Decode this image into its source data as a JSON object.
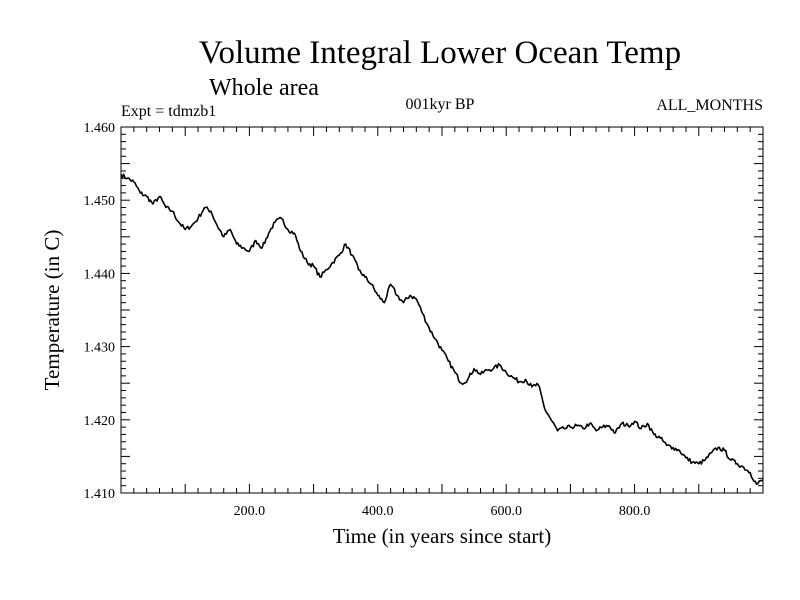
{
  "chart_data": {
    "type": "line",
    "title": "Volume Integral Lower Ocean Temp",
    "subtitle": "Whole area",
    "left_label": "Expt = tdmzb1",
    "center_label": "001kyr BP",
    "right_label": "ALL_MONTHS",
    "xlabel": "Time (in years since start)",
    "ylabel": "Temperature (in C)",
    "xlim": [
      0,
      1000
    ],
    "ylim": [
      1.41,
      1.46
    ],
    "xticks": [
      200,
      400,
      600,
      800
    ],
    "xtick_labels": [
      "200.0",
      "400.0",
      "600.0",
      "800.0"
    ],
    "yticks": [
      1.41,
      1.42,
      1.43,
      1.44,
      1.45,
      1.46
    ],
    "ytick_labels": [
      "1.410",
      "1.420",
      "1.430",
      "1.440",
      "1.450",
      "1.460"
    ],
    "grid": false,
    "series": [
      {
        "name": "Volume Integral Lower Ocean Temp",
        "color": "#000000",
        "x": [
          0,
          10,
          20,
          30,
          40,
          50,
          60,
          70,
          80,
          90,
          100,
          110,
          120,
          130,
          140,
          150,
          160,
          170,
          180,
          190,
          200,
          210,
          220,
          230,
          240,
          250,
          260,
          270,
          280,
          290,
          300,
          310,
          320,
          330,
          340,
          350,
          360,
          370,
          380,
          390,
          400,
          410,
          420,
          430,
          440,
          450,
          460,
          470,
          480,
          490,
          500,
          510,
          520,
          530,
          540,
          550,
          560,
          570,
          580,
          590,
          600,
          610,
          620,
          630,
          640,
          650,
          660,
          670,
          680,
          690,
          700,
          710,
          720,
          730,
          740,
          750,
          760,
          770,
          780,
          790,
          800,
          810,
          820,
          830,
          840,
          850,
          860,
          870,
          880,
          890,
          900,
          910,
          920,
          930,
          940,
          950,
          960,
          970,
          980,
          990,
          1000
        ],
        "y": [
          1.4535,
          1.453,
          1.4525,
          1.451,
          1.4505,
          1.4495,
          1.4505,
          1.449,
          1.4485,
          1.447,
          1.446,
          1.4465,
          1.4475,
          1.449,
          1.4485,
          1.4465,
          1.445,
          1.446,
          1.444,
          1.4435,
          1.443,
          1.4445,
          1.4435,
          1.4455,
          1.447,
          1.4475,
          1.446,
          1.4455,
          1.443,
          1.4415,
          1.441,
          1.4395,
          1.4405,
          1.4415,
          1.4425,
          1.444,
          1.4425,
          1.4405,
          1.4395,
          1.4385,
          1.437,
          1.436,
          1.4385,
          1.437,
          1.436,
          1.437,
          1.4365,
          1.4345,
          1.4325,
          1.431,
          1.4295,
          1.428,
          1.4265,
          1.425,
          1.4255,
          1.427,
          1.4262,
          1.4268,
          1.427,
          1.4275,
          1.4265,
          1.4258,
          1.4252,
          1.4255,
          1.4245,
          1.4248,
          1.4215,
          1.42,
          1.4185,
          1.4188,
          1.419,
          1.4192,
          1.4188,
          1.4195,
          1.4185,
          1.419,
          1.4192,
          1.4182,
          1.4195,
          1.4192,
          1.4198,
          1.4188,
          1.4195,
          1.418,
          1.4175,
          1.4165,
          1.4162,
          1.4158,
          1.4148,
          1.4142,
          1.414,
          1.4145,
          1.4155,
          1.4162,
          1.4158,
          1.4145,
          1.414,
          1.4135,
          1.4128,
          1.4112,
          1.4118
        ]
      }
    ]
  }
}
